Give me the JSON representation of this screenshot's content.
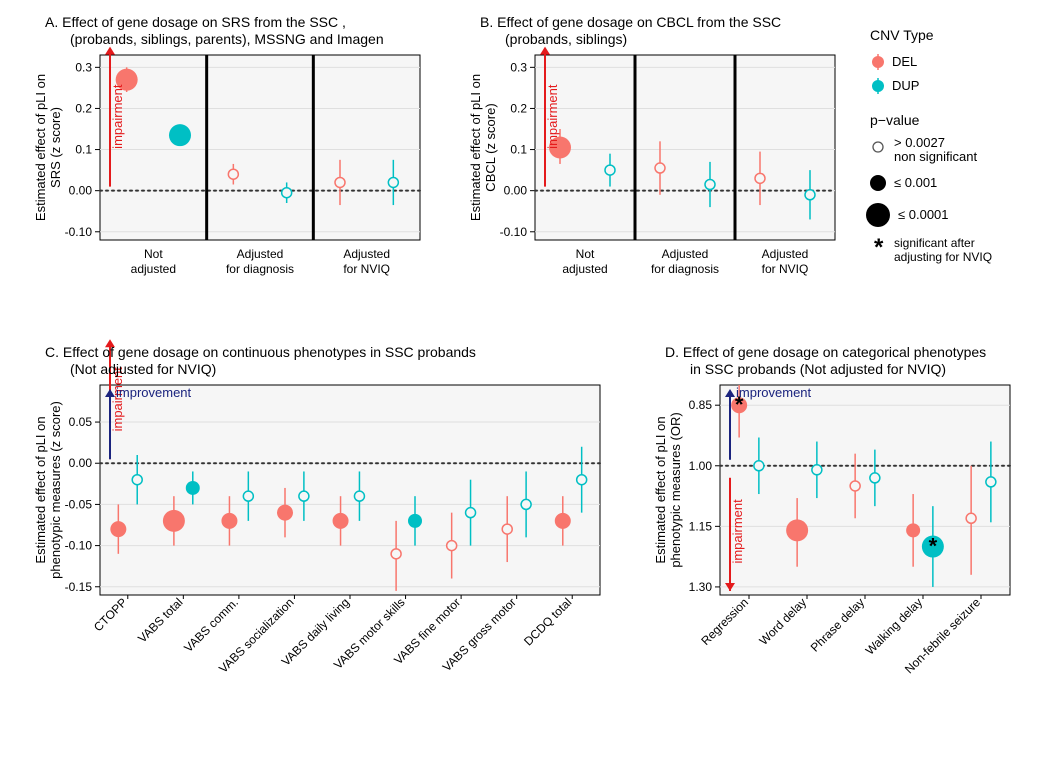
{
  "colors": {
    "del": "#f8766d",
    "dup": "#00bfc4",
    "text": "#000000",
    "grid": "#dfdfdf",
    "dotted": "#333333",
    "plotbg": "#f6f6f6",
    "panelborder": "#000000",
    "divider": "#000000",
    "impair": "#e41a1c",
    "improve": "#1a237e",
    "legend_fill": "#ffffff"
  },
  "legend": {
    "title_cnv": "CNV Type",
    "del": "DEL",
    "dup": "DUP",
    "title_pval": "p−value",
    "p1": "> 0.0027",
    "p1b": "non significant",
    "p2": "≤ 0.001",
    "p3": "≤ 0.0001",
    "star": "*",
    "star_text1": "significant after",
    "star_text2": "adjusting for NVIQ"
  },
  "panelA": {
    "title": "A. Effect of gene dosage on SRS from the SSC ,",
    "title2": "(probands, siblings, parents), MSSNG and Imagen",
    "ylabel1": "Estimated effect of pLI on",
    "ylabel2": "SRS (z score)",
    "yticks": [
      -0.1,
      0.0,
      0.1,
      0.2,
      0.3
    ],
    "ylim": [
      -0.12,
      0.33
    ],
    "groups": [
      "Not\nadjusted",
      "Adjusted\nfor diagnosis",
      "Adjusted\nfor NVIQ"
    ],
    "impair_label": "impairment",
    "points": [
      {
        "x": 0.5,
        "y": 0.27,
        "lo": 0.24,
        "hi": 0.3,
        "type": "DEL",
        "r": 11,
        "filled": true
      },
      {
        "x": 1.5,
        "y": 0.135,
        "lo": 0.11,
        "hi": 0.16,
        "type": "DUP",
        "r": 11,
        "filled": true
      },
      {
        "x": 2.5,
        "y": 0.04,
        "lo": 0.015,
        "hi": 0.065,
        "type": "DEL",
        "r": 5,
        "filled": false
      },
      {
        "x": 3.5,
        "y": -0.005,
        "lo": -0.03,
        "hi": 0.02,
        "type": "DUP",
        "r": 5,
        "filled": false
      },
      {
        "x": 4.5,
        "y": 0.02,
        "lo": -0.035,
        "hi": 0.075,
        "type": "DEL",
        "r": 5,
        "filled": false
      },
      {
        "x": 5.5,
        "y": 0.02,
        "lo": -0.035,
        "hi": 0.075,
        "type": "DUP",
        "r": 5,
        "filled": false
      }
    ]
  },
  "panelB": {
    "title": "B. Effect of gene dosage on CBCL from the SSC",
    "title2": "(probands, siblings)",
    "ylabel1": "Estimated effect of pLI on",
    "ylabel2": "CBCL (z score)",
    "yticks": [
      -0.1,
      0.0,
      0.1,
      0.2,
      0.3
    ],
    "ylim": [
      -0.12,
      0.33
    ],
    "groups": [
      "Not\nadjusted",
      "Adjusted\nfor diagnosis",
      "Adjusted\nfor NVIQ"
    ],
    "impair_label": "impairment",
    "points": [
      {
        "x": 0.5,
        "y": 0.105,
        "lo": 0.065,
        "hi": 0.15,
        "type": "DEL",
        "r": 11,
        "filled": true
      },
      {
        "x": 1.5,
        "y": 0.05,
        "lo": 0.01,
        "hi": 0.09,
        "type": "DUP",
        "r": 5,
        "filled": false
      },
      {
        "x": 2.5,
        "y": 0.055,
        "lo": -0.01,
        "hi": 0.12,
        "type": "DEL",
        "r": 5,
        "filled": false
      },
      {
        "x": 3.5,
        "y": 0.015,
        "lo": -0.04,
        "hi": 0.07,
        "type": "DUP",
        "r": 5,
        "filled": false
      },
      {
        "x": 4.5,
        "y": 0.03,
        "lo": -0.035,
        "hi": 0.095,
        "type": "DEL",
        "r": 5,
        "filled": false
      },
      {
        "x": 5.5,
        "y": -0.01,
        "lo": -0.07,
        "hi": 0.05,
        "type": "DUP",
        "r": 5,
        "filled": false
      }
    ]
  },
  "panelC": {
    "title": "C. Effect of gene dosage on continuous phenotypes in SSC probands",
    "title2": "(Not adjusted for NVIQ)",
    "ylabel1": "Estimated effect of pLI on",
    "ylabel2": "phenotypic measures (z score)",
    "yticks": [
      -0.15,
      -0.1,
      -0.05,
      0.0,
      0.05
    ],
    "ylim": [
      -0.16,
      0.095
    ],
    "impair_label": "impairment",
    "improve_label": "improvement",
    "categories": [
      "CTOPP",
      "VABS total",
      "VABS comm.",
      "VABS socialization",
      "VABS daily living",
      "VABS motor skills",
      "VABS fine motor",
      "VABS gross motor",
      "DCDQ total"
    ],
    "points": [
      {
        "x": 0.33,
        "y": -0.08,
        "lo": -0.11,
        "hi": -0.05,
        "type": "DEL",
        "r": 8,
        "filled": true
      },
      {
        "x": 0.67,
        "y": -0.02,
        "lo": -0.05,
        "hi": 0.01,
        "type": "DUP",
        "r": 5,
        "filled": false
      },
      {
        "x": 1.33,
        "y": -0.07,
        "lo": -0.1,
        "hi": -0.04,
        "type": "DEL",
        "r": 11,
        "filled": true
      },
      {
        "x": 1.67,
        "y": -0.03,
        "lo": -0.05,
        "hi": -0.01,
        "type": "DUP",
        "r": 7,
        "filled": true
      },
      {
        "x": 2.33,
        "y": -0.07,
        "lo": -0.1,
        "hi": -0.04,
        "type": "DEL",
        "r": 8,
        "filled": true
      },
      {
        "x": 2.67,
        "y": -0.04,
        "lo": -0.07,
        "hi": -0.01,
        "type": "DUP",
        "r": 5,
        "filled": false
      },
      {
        "x": 3.33,
        "y": -0.06,
        "lo": -0.09,
        "hi": -0.03,
        "type": "DEL",
        "r": 8,
        "filled": true
      },
      {
        "x": 3.67,
        "y": -0.04,
        "lo": -0.07,
        "hi": -0.01,
        "type": "DUP",
        "r": 5,
        "filled": false
      },
      {
        "x": 4.33,
        "y": -0.07,
        "lo": -0.1,
        "hi": -0.04,
        "type": "DEL",
        "r": 8,
        "filled": true
      },
      {
        "x": 4.67,
        "y": -0.04,
        "lo": -0.07,
        "hi": -0.01,
        "type": "DUP",
        "r": 5,
        "filled": false
      },
      {
        "x": 5.33,
        "y": -0.11,
        "lo": -0.155,
        "hi": -0.07,
        "type": "DEL",
        "r": 5,
        "filled": false
      },
      {
        "x": 5.67,
        "y": -0.07,
        "lo": -0.1,
        "hi": -0.04,
        "type": "DUP",
        "r": 7,
        "filled": true
      },
      {
        "x": 6.33,
        "y": -0.1,
        "lo": -0.14,
        "hi": -0.06,
        "type": "DEL",
        "r": 5,
        "filled": false
      },
      {
        "x": 6.67,
        "y": -0.06,
        "lo": -0.1,
        "hi": -0.02,
        "type": "DUP",
        "r": 5,
        "filled": false
      },
      {
        "x": 7.33,
        "y": -0.08,
        "lo": -0.12,
        "hi": -0.04,
        "type": "DEL",
        "r": 5,
        "filled": false
      },
      {
        "x": 7.67,
        "y": -0.05,
        "lo": -0.09,
        "hi": -0.01,
        "type": "DUP",
        "r": 5,
        "filled": false
      },
      {
        "x": 8.33,
        "y": -0.07,
        "lo": -0.1,
        "hi": -0.04,
        "type": "DEL",
        "r": 8,
        "filled": true
      },
      {
        "x": 8.67,
        "y": -0.02,
        "lo": -0.06,
        "hi": 0.02,
        "type": "DUP",
        "r": 5,
        "filled": false
      }
    ]
  },
  "panelD": {
    "title": "D. Effect of gene dosage on categorical phenotypes",
    "title2": "in SSC probands (Not adjusted for NVIQ)",
    "ylabel1": "Estimated effect of pLI on",
    "ylabel2": "phenotypic measures (OR)",
    "yticks": [
      0.85,
      1.0,
      1.15,
      1.3
    ],
    "ylim": [
      0.8,
      1.32
    ],
    "invert_y": true,
    "impair_label": "impairment",
    "improve_label": "improvement",
    "categories": [
      "Regression",
      "Word delay",
      "Phrase delay",
      "Walking delay",
      "Non-febrile seizure"
    ],
    "points": [
      {
        "x": 0.33,
        "y": 0.85,
        "lo": 0.8,
        "hi": 0.93,
        "type": "DEL",
        "r": 8,
        "filled": true,
        "star": true
      },
      {
        "x": 0.67,
        "y": 1.0,
        "lo": 0.93,
        "hi": 1.07,
        "type": "DUP",
        "r": 5,
        "filled": false
      },
      {
        "x": 1.33,
        "y": 1.16,
        "lo": 1.08,
        "hi": 1.25,
        "type": "DEL",
        "r": 11,
        "filled": true
      },
      {
        "x": 1.67,
        "y": 1.01,
        "lo": 0.94,
        "hi": 1.08,
        "type": "DUP",
        "r": 5,
        "filled": false
      },
      {
        "x": 2.33,
        "y": 1.05,
        "lo": 0.97,
        "hi": 1.13,
        "type": "DEL",
        "r": 5,
        "filled": false
      },
      {
        "x": 2.67,
        "y": 1.03,
        "lo": 0.96,
        "hi": 1.1,
        "type": "DUP",
        "r": 5,
        "filled": false
      },
      {
        "x": 3.33,
        "y": 1.16,
        "lo": 1.07,
        "hi": 1.25,
        "type": "DEL",
        "r": 7,
        "filled": true
      },
      {
        "x": 3.67,
        "y": 1.2,
        "lo": 1.1,
        "hi": 1.3,
        "type": "DUP",
        "r": 11,
        "filled": true,
        "star": true
      },
      {
        "x": 4.33,
        "y": 1.13,
        "lo": 1.0,
        "hi": 1.27,
        "type": "DEL",
        "r": 5,
        "filled": false
      },
      {
        "x": 4.67,
        "y": 1.04,
        "lo": 0.94,
        "hi": 1.14,
        "type": "DUP",
        "r": 5,
        "filled": false
      }
    ]
  }
}
